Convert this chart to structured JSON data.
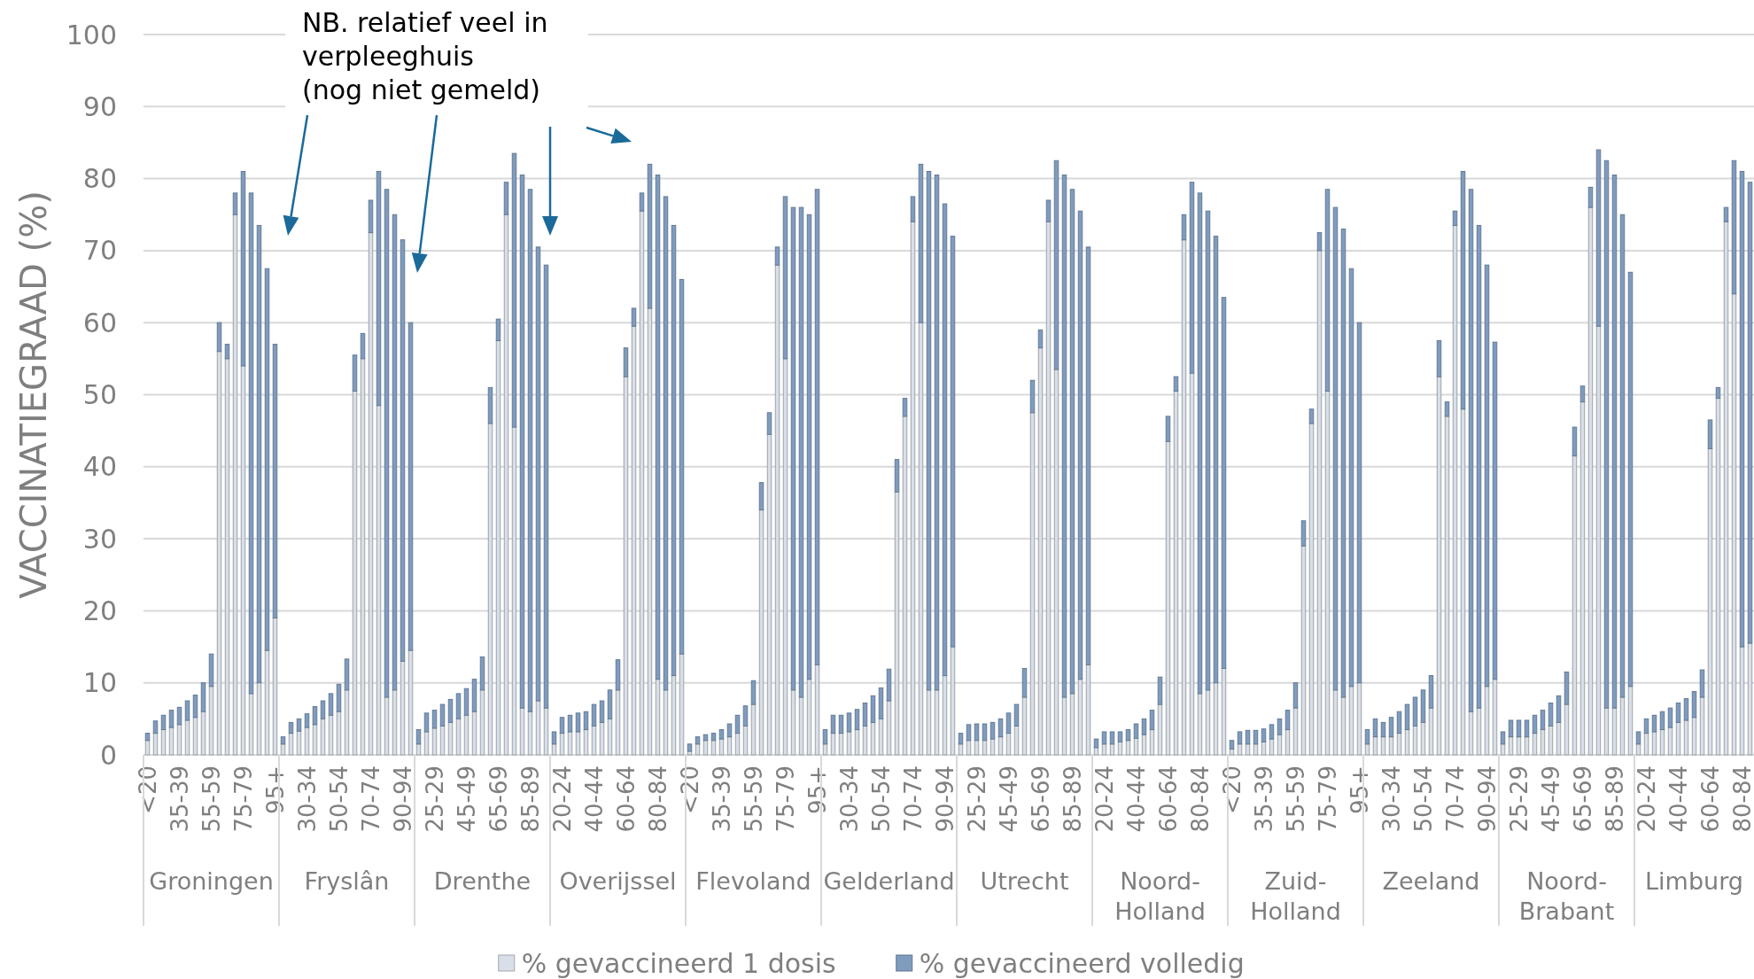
{
  "chart_data": {
    "type": "bar",
    "stacked": true,
    "ylabel": "VACCINATIEGRAAD (%)",
    "ylim": [
      0,
      100
    ],
    "yticks": [
      0,
      10,
      20,
      30,
      40,
      50,
      60,
      70,
      80,
      90,
      100
    ],
    "grid": "y",
    "legend": "bottom",
    "annotations": [
      "NB. relatief veel in verpleeghuis (nog niet gemeld)",
      "Groningen",
      "Fryslân",
      "Drenthe",
      "Overijssel",
      "Flevoland",
      "Gelderland",
      "Utrecht",
      "Noord-Holland",
      "Zuid-Holland",
      "Zeeland",
      "Noord-Brabant",
      "Limburg"
    ],
    "categories": [
      "<20",
      null,
      null,
      null,
      "35-39",
      null,
      null,
      null,
      "55-59",
      null,
      null,
      null,
      "75-79",
      null,
      null,
      null,
      "95+",
      null,
      null,
      null,
      "30-34",
      null,
      null,
      null,
      "50-54",
      null,
      null,
      null,
      "70-74",
      null,
      null,
      null,
      "90-94",
      null,
      null,
      null,
      "25-29",
      null,
      null,
      null,
      "45-49",
      null,
      null,
      null,
      "65-69",
      null,
      null,
      null,
      "85-89",
      null,
      null,
      null,
      "20-24",
      null,
      null,
      null,
      "40-44",
      null,
      null,
      null,
      "60-64",
      null,
      null,
      null,
      "80-84",
      null,
      null,
      null,
      "<20",
      null,
      null,
      null,
      "35-39",
      null,
      null,
      null,
      "55-59",
      null,
      null,
      null,
      "75-79",
      null,
      null,
      null,
      "95+",
      null,
      null,
      null,
      "30-34",
      null,
      null,
      null,
      "50-54",
      null,
      null,
      null,
      "70-74",
      null,
      null,
      null,
      "90-94",
      null,
      null,
      null,
      "25-29",
      null,
      null,
      null,
      "45-49",
      null,
      null,
      null,
      "65-69",
      null,
      null,
      null,
      "85-89",
      null,
      null,
      null,
      "20-24",
      null,
      null,
      null,
      "40-44",
      null,
      null,
      null,
      "60-64",
      null,
      null,
      null,
      "80-84",
      null,
      null,
      null,
      "<20",
      null,
      null,
      null,
      "35-39",
      null,
      null,
      null,
      "55-59",
      null,
      null,
      null,
      "75-79",
      null,
      null,
      null,
      "95+",
      null,
      null,
      null,
      "30-34",
      null,
      null,
      null,
      "50-54",
      null,
      null,
      null,
      "70-74",
      null,
      null,
      null,
      "90-94",
      null,
      null,
      null,
      "25-29",
      null,
      null,
      null,
      "45-49",
      null,
      null,
      null,
      "65-69",
      null,
      null,
      null,
      "85-89",
      null,
      null,
      null,
      "20-24",
      null,
      null,
      null,
      "40-44",
      null,
      null,
      null,
      "60-64",
      null,
      null,
      null,
      "80-84",
      null
    ],
    "series": [
      {
        "name": "% gevaccineerd 1 dosis",
        "color": "#d9dfe8",
        "values": [
          2,
          3,
          3.5,
          3.8,
          4.2,
          4.8,
          5.2,
          6,
          9.5,
          56,
          55,
          75,
          54,
          8.5,
          10,
          14.5,
          19,
          1.5,
          3,
          3.3,
          3.8,
          4.2,
          5,
          5.5,
          6,
          9,
          50.5,
          55,
          72.5,
          48.5,
          8,
          9,
          13,
          14.5,
          1.5,
          3.2,
          3.7,
          4,
          4.5,
          5,
          5.5,
          6,
          9,
          46,
          57.5,
          75,
          45.5,
          6.5,
          6,
          7.5,
          6.5,
          1.5,
          3,
          3.2,
          3.2,
          3.5,
          4,
          4.5,
          5,
          9,
          52.5,
          59.5,
          75.5,
          62,
          10.5,
          9,
          11,
          14,
          0.5,
          1.5,
          2,
          2,
          2.2,
          2.5,
          3,
          4,
          7,
          34,
          44.5,
          68,
          55,
          9,
          8,
          10.5,
          12.5,
          1.5,
          3,
          3,
          3.2,
          3.5,
          4,
          4.5,
          5,
          7.5,
          36.5,
          47,
          74,
          60,
          9,
          9,
          11,
          15,
          1.5,
          2,
          2,
          2,
          2.2,
          2.5,
          3,
          4,
          8,
          47.5,
          56.5,
          74,
          53.5,
          8,
          8.5,
          10.5,
          12.5,
          1,
          1.5,
          1.5,
          1.8,
          2,
          2.3,
          2.8,
          3.5,
          7,
          43.5,
          50.5,
          71.5,
          53,
          8.5,
          9,
          10,
          12,
          0.8,
          1.5,
          1.5,
          1.5,
          1.8,
          2.2,
          2.8,
          3.5,
          6.5,
          29,
          46,
          70,
          50.5,
          9,
          8,
          9.5,
          10,
          1.5,
          2.5,
          2.5,
          2.5,
          3,
          3.5,
          4,
          4.5,
          6.5,
          52.5,
          47,
          73.5,
          48,
          6,
          6.5,
          9.5,
          10.5,
          1.5,
          2.5,
          2.5,
          2.5,
          3,
          3.5,
          4,
          4.5,
          7,
          41.5,
          49,
          76,
          59.5,
          6.5,
          6.5,
          8,
          9.5,
          1.5,
          3,
          3.2,
          3.5,
          3.8,
          4.5,
          4.8,
          5.2,
          8,
          42.5,
          49.5,
          74,
          64,
          15,
          15.5
        ]
      },
      {
        "name": "% gevaccineerd volledig",
        "color": "#7f9cbf",
        "values": [
          1,
          1.7,
          2,
          2.4,
          2.4,
          2.7,
          3.1,
          4,
          4.5,
          4,
          2,
          3,
          27,
          69.5,
          63.5,
          53,
          38,
          1,
          1.5,
          1.7,
          1.9,
          2.5,
          2.5,
          3,
          3.8,
          4.3,
          5,
          3.5,
          4.5,
          32.5,
          70.5,
          66,
          58.5,
          45.5,
          2,
          2.6,
          2.5,
          3,
          3.2,
          3.5,
          3.7,
          4.5,
          4.6,
          5,
          3,
          4.5,
          38,
          74,
          72.5,
          63,
          61.5,
          1.7,
          2.2,
          2.3,
          2.6,
          2.5,
          3,
          3,
          4,
          4.2,
          4,
          2.5,
          2.5,
          20,
          70,
          68.5,
          62.5,
          52,
          1,
          1,
          0.8,
          1,
          1.3,
          1.8,
          2.5,
          2.8,
          3.3,
          3.8,
          3,
          2.5,
          22.5,
          67,
          68,
          64.5,
          66,
          2,
          2.5,
          2.5,
          2.6,
          2.8,
          3.2,
          3.7,
          4.3,
          4.4,
          4.5,
          2.5,
          3.5,
          22,
          72,
          71.5,
          65.5,
          57,
          1.5,
          2.2,
          2.3,
          2.3,
          2.3,
          2.5,
          2.8,
          3,
          4,
          4.5,
          2.5,
          3,
          29,
          72.5,
          70,
          65,
          58,
          1.2,
          1.7,
          1.7,
          1.4,
          1.5,
          2,
          2.2,
          2.7,
          3.8,
          3.5,
          2,
          3.5,
          26.5,
          69.5,
          66.5,
          62,
          51.5,
          1.2,
          1.7,
          1.9,
          1.9,
          1.8,
          2,
          2.2,
          2.7,
          3.5,
          3.5,
          2,
          2.5,
          28,
          67,
          65,
          58,
          50,
          2,
          2.5,
          2,
          2.7,
          3,
          3.5,
          4,
          4.5,
          4.5,
          5,
          2,
          2,
          33,
          72.5,
          67,
          58.5,
          46.8,
          1.7,
          2.3,
          2.3,
          2.3,
          2.5,
          2.7,
          3.2,
          3.7,
          4.5,
          4,
          2.2,
          2.8,
          24.5,
          76,
          74,
          67,
          57.5,
          1.7,
          2,
          2.3,
          2.5,
          2.7,
          2.7,
          3,
          3.6,
          3.8,
          4,
          1.5,
          2,
          18.5,
          66,
          64
        ]
      }
    ]
  }
}
